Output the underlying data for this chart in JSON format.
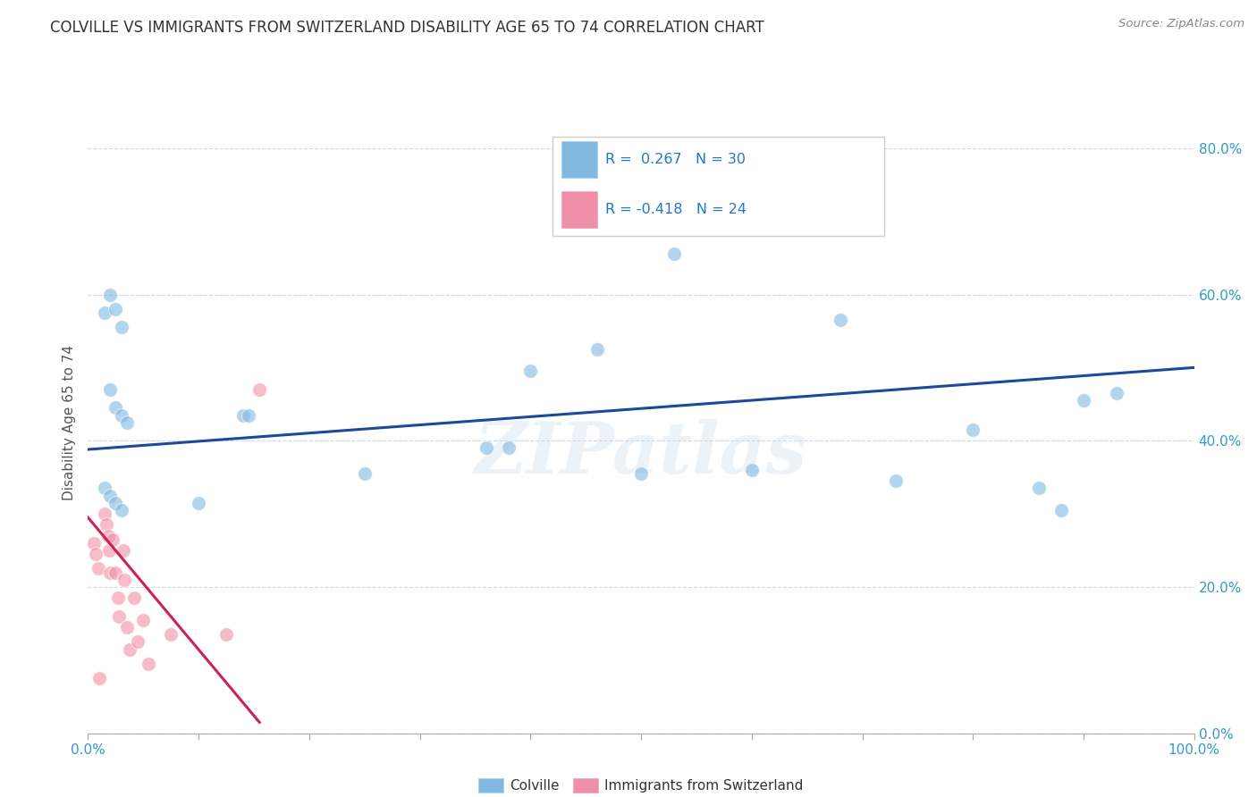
{
  "title": "COLVILLE VS IMMIGRANTS FROM SWITZERLAND DISABILITY AGE 65 TO 74 CORRELATION CHART",
  "source": "Source: ZipAtlas.com",
  "ylabel": "Disability Age 65 to 74",
  "xlim": [
    0.0,
    1.0
  ],
  "ylim": [
    0.0,
    0.85
  ],
  "xticks": [
    0.0,
    0.1,
    0.2,
    0.3,
    0.4,
    0.5,
    0.6,
    0.7,
    0.8,
    0.9,
    1.0
  ],
  "x_edge_labels": [
    "0.0%",
    "100.0%"
  ],
  "yticks": [
    0.0,
    0.2,
    0.4,
    0.6,
    0.8
  ],
  "yticklabels": [
    "0.0%",
    "20.0%",
    "40.0%",
    "60.0%",
    "80.0%"
  ],
  "legend_entries": [
    {
      "label": "Colville",
      "color": "#a8c8e8",
      "r": " 0.267",
      "n": "30"
    },
    {
      "label": "Immigrants from Switzerland",
      "color": "#f8b0c0",
      "r": "-0.418",
      "n": "24"
    }
  ],
  "blue_scatter_x": [
    0.015,
    0.02,
    0.025,
    0.03,
    0.02,
    0.025,
    0.03,
    0.035,
    0.015,
    0.02,
    0.025,
    0.03,
    0.1,
    0.14,
    0.145,
    0.25,
    0.36,
    0.38,
    0.4,
    0.46,
    0.5,
    0.53,
    0.6,
    0.68,
    0.73,
    0.8,
    0.86,
    0.88,
    0.9,
    0.93
  ],
  "blue_scatter_y": [
    0.575,
    0.6,
    0.58,
    0.555,
    0.47,
    0.445,
    0.435,
    0.425,
    0.335,
    0.325,
    0.315,
    0.305,
    0.315,
    0.435,
    0.435,
    0.355,
    0.39,
    0.39,
    0.495,
    0.525,
    0.355,
    0.655,
    0.36,
    0.565,
    0.345,
    0.415,
    0.335,
    0.305,
    0.455,
    0.465
  ],
  "pink_scatter_x": [
    0.005,
    0.007,
    0.009,
    0.01,
    0.015,
    0.017,
    0.018,
    0.019,
    0.02,
    0.022,
    0.025,
    0.027,
    0.028,
    0.032,
    0.033,
    0.035,
    0.038,
    0.042,
    0.045,
    0.05,
    0.055,
    0.075,
    0.125,
    0.155
  ],
  "pink_scatter_y": [
    0.26,
    0.245,
    0.225,
    0.075,
    0.3,
    0.285,
    0.27,
    0.25,
    0.22,
    0.265,
    0.22,
    0.185,
    0.16,
    0.25,
    0.21,
    0.145,
    0.115,
    0.185,
    0.125,
    0.155,
    0.095,
    0.135,
    0.135,
    0.47
  ],
  "blue_line_x": [
    0.0,
    1.0
  ],
  "blue_line_y": [
    0.388,
    0.5
  ],
  "pink_line_x": [
    0.0,
    0.155
  ],
  "pink_line_y": [
    0.295,
    0.015
  ],
  "background_color": "#ffffff",
  "grid_color": "#d0d8e8",
  "blue_scatter_color": "#80b8e0",
  "pink_scatter_color": "#f090a8",
  "blue_line_color": "#1a4a99",
  "pink_line_color": "#cc2255",
  "watermark": "ZIPatlas"
}
